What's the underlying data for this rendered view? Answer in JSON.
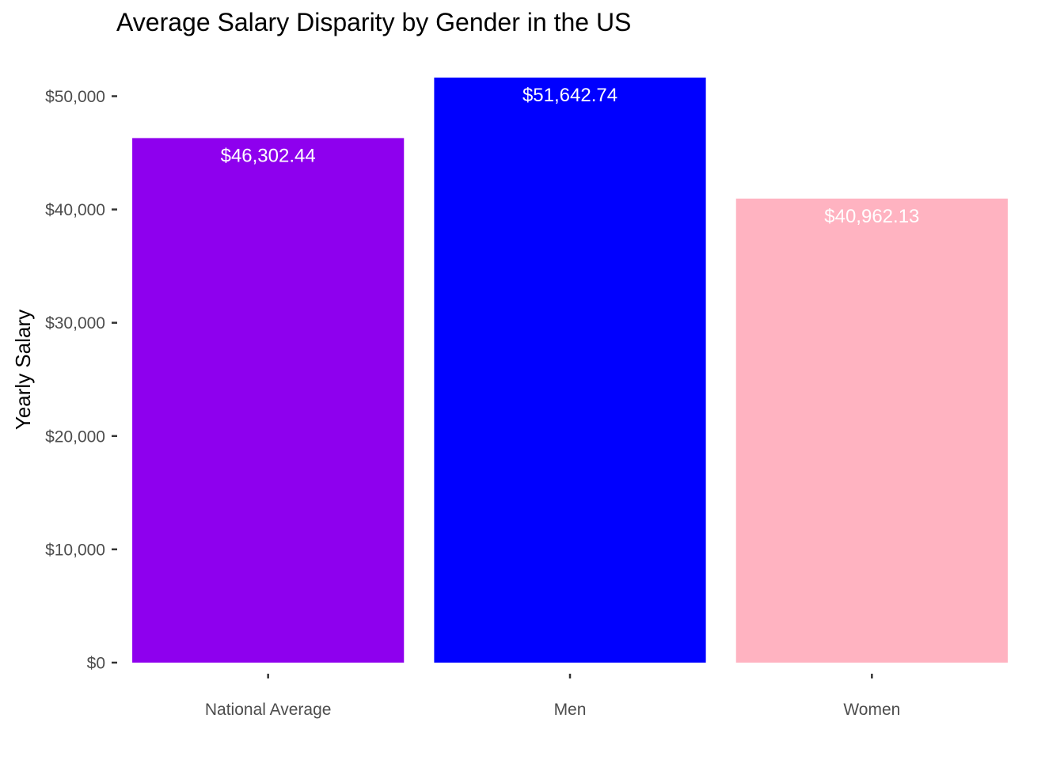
{
  "chart_data": {
    "type": "bar",
    "title": "Average Salary Disparity by Gender in the US",
    "xlabel": "",
    "ylabel": "Yearly Salary",
    "categories": [
      "National Average",
      "Men",
      "Women"
    ],
    "values": [
      46302.44,
      51642.74,
      40962.13
    ],
    "value_labels": [
      "$46,302.44",
      "$51,642.74",
      "$40,962.13"
    ],
    "bar_colors": [
      "#8e00ee",
      "#0000ff",
      "#ffb3c1"
    ],
    "y_ticks": [
      0,
      10000,
      20000,
      30000,
      40000,
      50000
    ],
    "y_tick_labels": [
      "$0",
      "$10,000",
      "$20,000",
      "$30,000",
      "$40,000",
      "$50,000"
    ],
    "ylim": [
      0,
      51642.74
    ],
    "grid": false,
    "legend": "none"
  }
}
